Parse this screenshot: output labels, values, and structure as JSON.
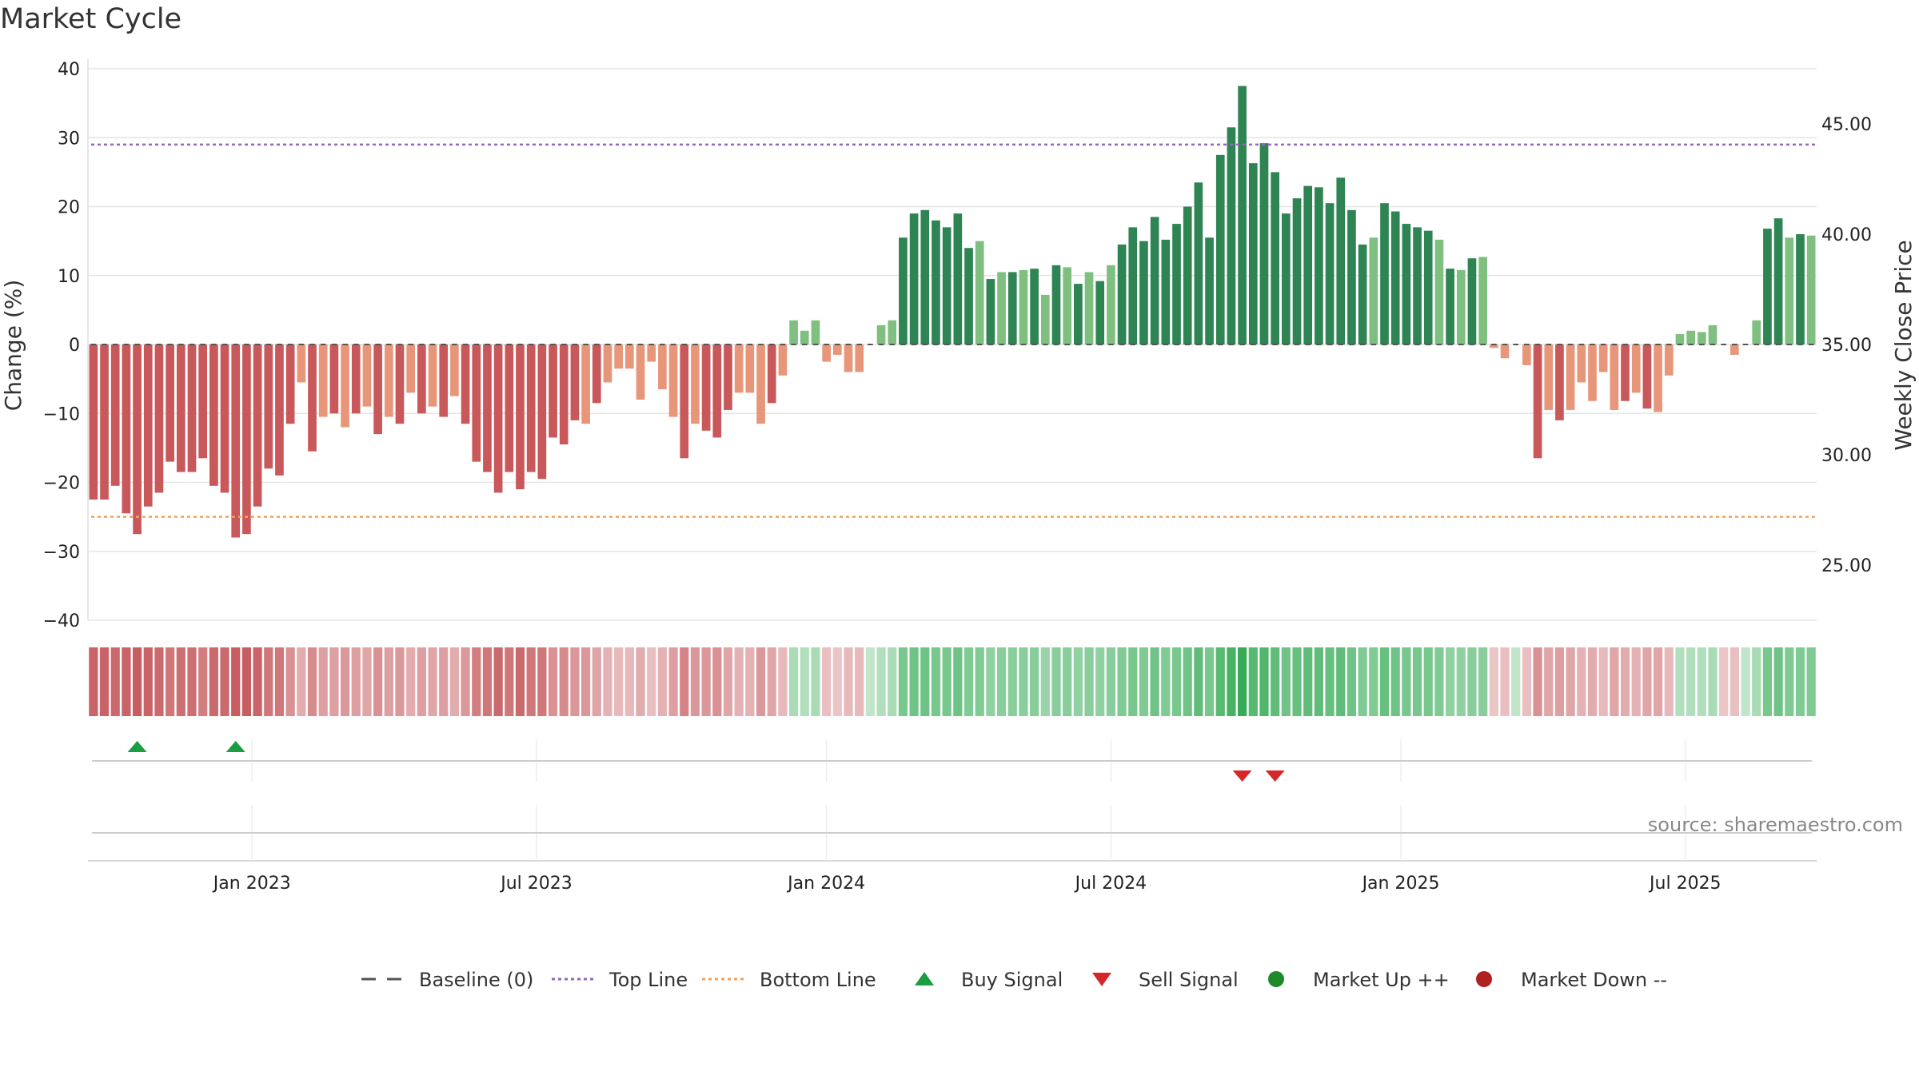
{
  "title": "Market Cycle",
  "source": "source: sharemaestro.com",
  "colors": {
    "neg_dark": "#c8585a",
    "neg_light": "#e8967a",
    "pos_dark": "#2e8452",
    "pos_light": "#7fbf7f",
    "top_line": "#9467bd",
    "bottom_line": "#f2a35a",
    "buy": "#1a9e3f",
    "sell": "#d62728",
    "market_up": "#1e8a2a",
    "market_down": "#b02220",
    "baseline": "#555555",
    "grid": "#e5e5e5"
  },
  "chart_data": {
    "type": "bar",
    "title": "Market Cycle",
    "ylabel": "Change (%)",
    "y2label": "Weekly Close Price",
    "ylim": [
      -40,
      40
    ],
    "y2lim": [
      22.5,
      47.5
    ],
    "yticks": [
      "40",
      "30",
      "20",
      "10",
      "0",
      "−10",
      "−20",
      "−30",
      "−40"
    ],
    "y2ticks": [
      "45.00",
      "40.00",
      "35.00",
      "30.00",
      "25.00"
    ],
    "xtick_labels": [
      "Jan 2023",
      "Jul 2023",
      "Jan 2024",
      "Jul 2024",
      "Jan 2025",
      "Jul 2025"
    ],
    "xtick_weeks": [
      15,
      41,
      67.5,
      93.5,
      120,
      146
    ],
    "top_line": 29,
    "bottom_line": -25,
    "values": [
      -22.5,
      -22.5,
      -20.5,
      -24.5,
      -27.5,
      -23.5,
      -21.5,
      -17,
      -18.5,
      -18.5,
      -16.5,
      -20.5,
      -21.5,
      -28,
      -27.5,
      -23.5,
      -18,
      -19,
      -11.5,
      -5.5,
      -15.5,
      -10.5,
      -10,
      -12,
      -10,
      -9,
      -13,
      -10.5,
      -11.5,
      -7,
      -10,
      -9,
      -10.5,
      -7.5,
      -11.5,
      -17,
      -18.5,
      -21.5,
      -18.5,
      -21,
      -18.5,
      -19.5,
      -13.5,
      -14.5,
      -11,
      -11.5,
      -8.5,
      -5.5,
      -3.5,
      -3.5,
      -8,
      -2.5,
      -6.5,
      -10.5,
      -16.5,
      -11.5,
      -12.5,
      -13.5,
      -9.5,
      -7,
      -7,
      -11.5,
      -8.5,
      -4.5,
      3.5,
      2,
      3.5,
      -2.5,
      -1.5,
      -4,
      -4,
      0,
      2.8,
      3.5,
      15.5,
      19,
      19.5,
      18,
      17,
      19,
      14,
      15,
      9.5,
      10.5,
      10.5,
      10.8,
      11,
      7.2,
      11.5,
      11.2,
      8.8,
      10.5,
      9.2,
      11.5,
      14.5,
      17,
      15,
      18.5,
      15.2,
      17.5,
      20,
      23.5,
      15.5,
      27.5,
      31.5,
      37.5,
      26.3,
      29.2,
      25,
      19,
      21.2,
      23,
      22.8,
      20.5,
      24.2,
      19.5,
      14.5,
      15.5,
      20.5,
      19.3,
      17.5,
      17,
      16.5,
      15.2,
      11,
      10.8,
      12.5,
      12.7,
      -0.5,
      -2,
      0,
      -3,
      -16.5,
      -9.5,
      -11,
      -9.5,
      -5.5,
      -8.2,
      -4,
      -9.5,
      -8.2,
      -7,
      -9.3,
      -9.8,
      -4.5,
      1.5,
      2,
      1.8,
      2.8,
      0,
      -1.5,
      0,
      3.5,
      16.8,
      18.3,
      15.5,
      16,
      15.8
    ],
    "shading": [
      -0.9,
      -0.9,
      -0.85,
      -0.9,
      -0.95,
      -0.9,
      -0.85,
      -0.75,
      -0.8,
      -0.8,
      -0.7,
      -0.85,
      -0.85,
      -0.95,
      -0.95,
      -0.9,
      -0.75,
      -0.75,
      -0.55,
      -0.35,
      -0.6,
      -0.45,
      -0.45,
      -0.5,
      -0.45,
      -0.4,
      -0.55,
      -0.45,
      -0.5,
      -0.35,
      -0.45,
      -0.4,
      -0.45,
      -0.35,
      -0.5,
      -0.7,
      -0.75,
      -0.85,
      -0.75,
      -0.85,
      -0.75,
      -0.75,
      -0.55,
      -0.6,
      -0.5,
      -0.5,
      -0.4,
      -0.3,
      -0.25,
      -0.25,
      -0.35,
      -0.2,
      -0.3,
      -0.45,
      -0.65,
      -0.5,
      -0.5,
      -0.55,
      -0.4,
      -0.3,
      -0.3,
      -0.5,
      -0.4,
      -0.25,
      0.25,
      0.2,
      0.25,
      -0.2,
      -0.15,
      -0.25,
      -0.25,
      0.1,
      0.2,
      0.25,
      0.55,
      0.6,
      0.6,
      0.55,
      0.55,
      0.6,
      0.5,
      0.5,
      0.4,
      0.45,
      0.45,
      0.45,
      0.45,
      0.35,
      0.45,
      0.45,
      0.4,
      0.45,
      0.4,
      0.45,
      0.5,
      0.55,
      0.5,
      0.6,
      0.5,
      0.55,
      0.6,
      0.7,
      0.55,
      0.75,
      0.85,
      0.95,
      0.75,
      0.8,
      0.7,
      0.6,
      0.65,
      0.7,
      0.7,
      0.65,
      0.7,
      0.6,
      0.5,
      0.5,
      0.65,
      0.6,
      0.55,
      0.55,
      0.55,
      0.5,
      0.4,
      0.4,
      0.45,
      0.45,
      -0.15,
      -0.2,
      0.1,
      -0.2,
      -0.55,
      -0.4,
      -0.45,
      -0.4,
      -0.3,
      -0.35,
      -0.25,
      -0.4,
      -0.35,
      -0.3,
      -0.4,
      -0.4,
      -0.25,
      0.2,
      0.2,
      0.2,
      0.25,
      -0.15,
      -0.2,
      0.1,
      0.25,
      0.55,
      0.6,
      0.5,
      0.5,
      0.5
    ],
    "buy_signal_weeks": [
      4,
      13
    ],
    "sell_signal_weeks": [
      105,
      108
    ]
  },
  "legend": [
    {
      "label": "Baseline (0)",
      "symbol": "dash",
      "color": "#555555"
    },
    {
      "label": "Top Line",
      "symbol": "dot",
      "color": "#9467bd"
    },
    {
      "label": "Bottom Line",
      "symbol": "dot",
      "color": "#f2a35a"
    },
    {
      "label": "Buy Signal",
      "symbol": "triangle-up",
      "color": "#1a9e3f"
    },
    {
      "label": "Sell Signal",
      "symbol": "triangle-down",
      "color": "#d62728"
    },
    {
      "label": "Market Up ++",
      "symbol": "circle",
      "color": "#1e8a2a"
    },
    {
      "label": "Market Down --",
      "symbol": "circle",
      "color": "#b02220"
    }
  ]
}
